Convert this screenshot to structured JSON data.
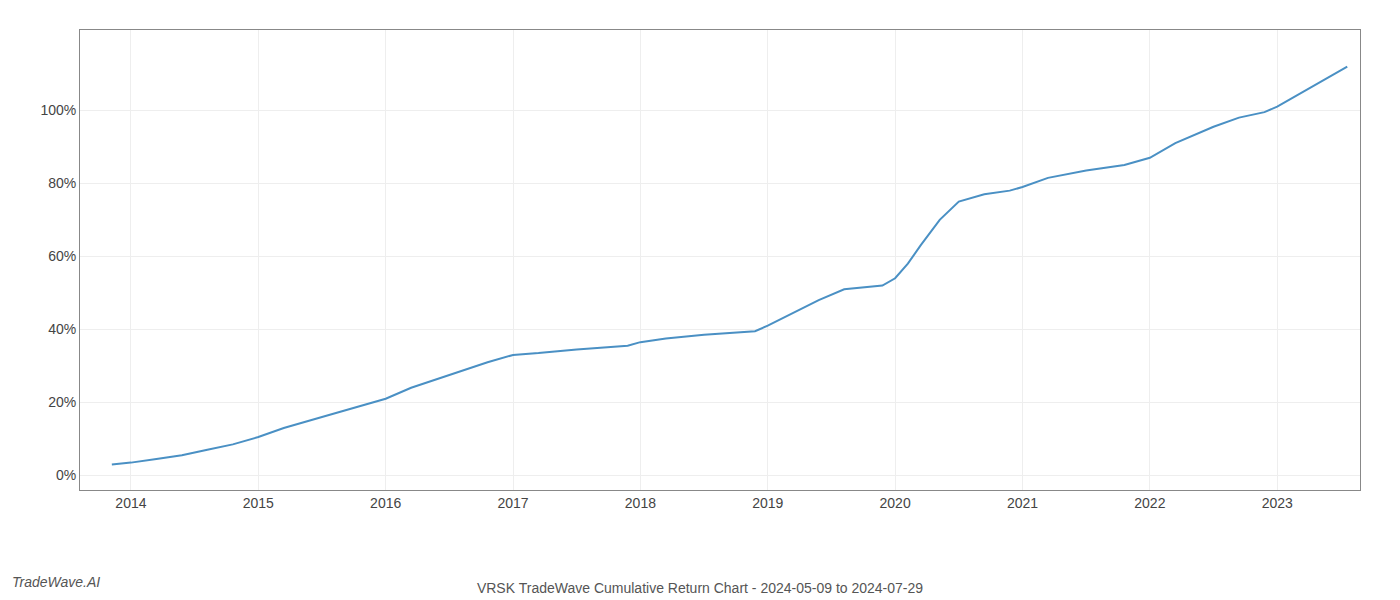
{
  "chart_data": {
    "type": "line",
    "title": "VRSK TradeWave Cumulative Return Chart - 2024-05-09 to 2024-07-29",
    "annotations": [
      "TradeWave.AI"
    ],
    "color": "#4a90c4",
    "grid": true,
    "x": [
      2013.85,
      2014.0,
      2014.2,
      2014.4,
      2014.6,
      2014.8,
      2015.0,
      2015.2,
      2015.5,
      2015.8,
      2016.0,
      2016.2,
      2016.5,
      2016.8,
      2017.0,
      2017.2,
      2017.5,
      2017.7,
      2017.9,
      2018.0,
      2018.2,
      2018.5,
      2018.7,
      2018.9,
      2019.0,
      2019.2,
      2019.4,
      2019.6,
      2019.75,
      2019.9,
      2020.0,
      2020.1,
      2020.2,
      2020.35,
      2020.5,
      2020.7,
      2020.9,
      2021.0,
      2021.2,
      2021.5,
      2021.8,
      2022.0,
      2022.2,
      2022.5,
      2022.7,
      2022.9,
      2023.0,
      2023.2,
      2023.4,
      2023.55
    ],
    "values": [
      3.0,
      3.5,
      4.5,
      5.5,
      7.0,
      8.5,
      10.5,
      13.0,
      16.0,
      19.0,
      21.0,
      24.0,
      27.5,
      31.0,
      33.0,
      33.5,
      34.5,
      35.0,
      35.5,
      36.5,
      37.5,
      38.5,
      39.0,
      39.5,
      41.0,
      44.5,
      48.0,
      51.0,
      51.5,
      52.0,
      54.0,
      58.0,
      63.0,
      70.0,
      75.0,
      77.0,
      78.0,
      79.0,
      81.5,
      83.5,
      85.0,
      87.0,
      91.0,
      95.5,
      98.0,
      99.5,
      101.0,
      105.0,
      109.0,
      112.0
    ],
    "xlim": [
      2013.6,
      2023.65
    ],
    "ylim": [
      -4,
      122
    ],
    "xticks": [
      2014,
      2015,
      2016,
      2017,
      2018,
      2019,
      2020,
      2021,
      2022,
      2023
    ],
    "yticks": [
      {
        "value": 0,
        "label": "0%"
      },
      {
        "value": 20,
        "label": "20%"
      },
      {
        "value": 40,
        "label": "40%"
      },
      {
        "value": 60,
        "label": "60%"
      },
      {
        "value": 80,
        "label": "80%"
      },
      {
        "value": 100,
        "label": "100%"
      }
    ]
  }
}
